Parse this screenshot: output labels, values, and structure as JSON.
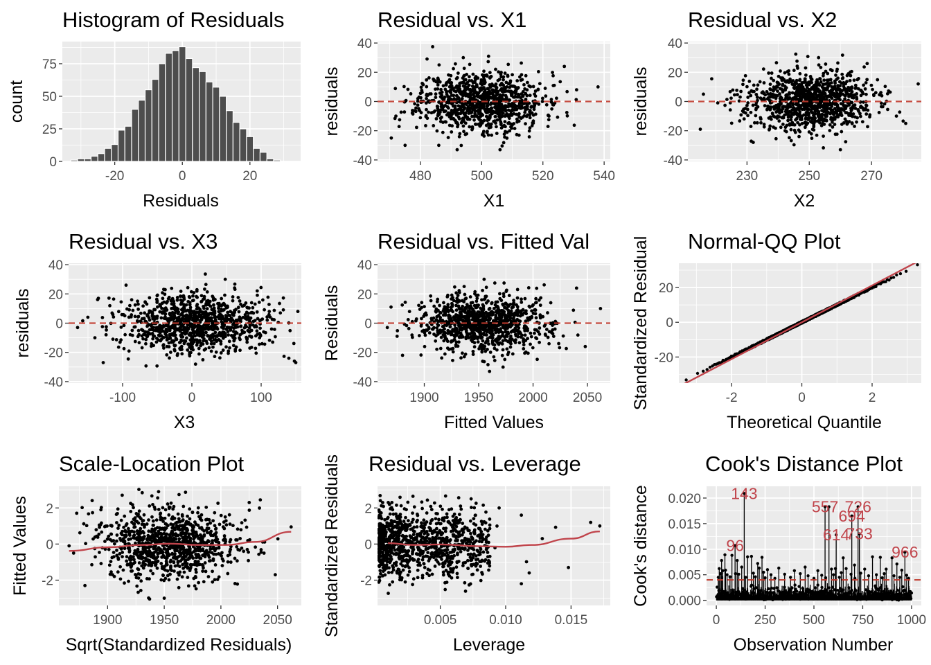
{
  "colors": {
    "panel_bg": "#EBEBEB",
    "grid": "#FFFFFF",
    "points": "#000000",
    "bars": "#4D4D4D",
    "bar_outline": "#FFFFFF",
    "reference": "#C0444B"
  },
  "chart_data": [
    {
      "id": "hist",
      "type": "bar",
      "title": "Histogram of Residuals",
      "xlabel": "Residuals",
      "ylabel": "count",
      "xlim": [
        -35.5,
        35
      ],
      "ylim": [
        0,
        92
      ],
      "xticks": [
        -20,
        0,
        20
      ],
      "xtick_labels": [
        "-20",
        "0",
        "20"
      ],
      "yticks": [
        0,
        25,
        50,
        75
      ],
      "ytick_labels": [
        "0",
        "25",
        "50",
        "75"
      ],
      "bin_width": 2,
      "bins": [
        -32,
        -30,
        -28,
        -26,
        -24,
        -22,
        -20,
        -18,
        -16,
        -14,
        -12,
        -10,
        -8,
        -6,
        -4,
        -2,
        0,
        2,
        4,
        6,
        8,
        10,
        12,
        14,
        16,
        18,
        20,
        22,
        24,
        26,
        28,
        30
      ],
      "counts": [
        1,
        2,
        2,
        4,
        6,
        10,
        13,
        24,
        27,
        40,
        47,
        55,
        63,
        75,
        83,
        85,
        88,
        79,
        72,
        69,
        61,
        57,
        50,
        39,
        30,
        25,
        19,
        10,
        7,
        2,
        1,
        0
      ]
    },
    {
      "id": "x1",
      "type": "scatter",
      "title": "Residual vs. X1",
      "xlabel": "X1",
      "ylabel": "residuals",
      "xlim": [
        466,
        542
      ],
      "ylim": [
        -41,
        41
      ],
      "xticks": [
        480,
        500,
        520,
        540
      ],
      "xtick_labels": [
        "480",
        "500",
        "520",
        "540"
      ],
      "yticks": [
        -40,
        -20,
        0,
        20,
        40
      ],
      "ytick_labels": [
        "-40",
        "-20",
        "0",
        "20",
        "40"
      ],
      "reference_y": 0,
      "cloud": {
        "n": 1000,
        "x_mean": 500,
        "x_sd": 10,
        "y_sd": 10,
        "seed": 11
      },
      "points": [
        [
          470.5,
          -25
        ],
        [
          472,
          -10
        ],
        [
          475,
          -30
        ],
        [
          527,
          24
        ],
        [
          531,
          8
        ],
        [
          538,
          10
        ],
        [
          494,
          30
        ],
        [
          486,
          -30
        ],
        [
          506,
          -33
        ],
        [
          492,
          -33
        ]
      ]
    },
    {
      "id": "x2",
      "type": "scatter",
      "title": "Residual vs. X2",
      "xlabel": "X2",
      "ylabel": "residuals",
      "xlim": [
        211,
        286
      ],
      "ylim": [
        -41,
        41
      ],
      "xticks": [
        230,
        250,
        270
      ],
      "xtick_labels": [
        "230",
        "250",
        "270"
      ],
      "yticks": [
        -40,
        -20,
        0,
        20,
        40
      ],
      "ytick_labels": [
        "-40",
        "-20",
        "0",
        "20",
        "40"
      ],
      "reference_y": 0,
      "cloud": {
        "n": 1000,
        "x_mean": 250,
        "x_sd": 10,
        "y_sd": 10,
        "seed": 23
      },
      "points": [
        [
          215,
          -19
        ],
        [
          216,
          5
        ],
        [
          278,
          -10
        ],
        [
          281,
          -15
        ],
        [
          285,
          12
        ],
        [
          253,
          30
        ],
        [
          260,
          -33
        ],
        [
          232,
          -28
        ]
      ]
    },
    {
      "id": "x3",
      "type": "scatter",
      "title": "Residual vs. X3",
      "xlabel": "X3",
      "ylabel": "residuals",
      "xlim": [
        -178,
        158
      ],
      "ylim": [
        -41,
        41
      ],
      "xticks": [
        -100,
        0,
        100
      ],
      "xtick_labels": [
        "-100",
        "0",
        "100"
      ],
      "yticks": [
        -40,
        -20,
        0,
        20,
        40
      ],
      "ytick_labels": [
        "-40",
        "-20",
        "0",
        "20",
        "40"
      ],
      "reference_y": 0,
      "cloud": {
        "n": 1000,
        "x_mean": 5,
        "x_sd": 50,
        "y_sd": 10,
        "seed": 37
      },
      "points": [
        [
          -165,
          -3
        ],
        [
          -140,
          -10
        ],
        [
          -135,
          17
        ],
        [
          -128,
          -27
        ],
        [
          150,
          -27
        ],
        [
          153,
          8
        ],
        [
          148,
          -26
        ],
        [
          140,
          -24
        ],
        [
          -95,
          26
        ]
      ]
    },
    {
      "id": "fitted",
      "type": "scatter",
      "title": "Residual vs. Fitted Val",
      "xlabel": "Fitted Values",
      "ylabel": "Residuals",
      "xlim": [
        1857,
        2071
      ],
      "ylim": [
        -41,
        41
      ],
      "xticks": [
        1900,
        1950,
        2000,
        2050
      ],
      "xtick_labels": [
        "1900",
        "1950",
        "2000",
        "2050"
      ],
      "yticks": [
        -40,
        -20,
        0,
        20,
        40
      ],
      "ytick_labels": [
        "-40",
        "-20",
        "0",
        "20",
        "40"
      ],
      "reference_y": 0,
      "cloud": {
        "n": 1000,
        "x_mean": 1955,
        "x_sd": 30,
        "y_sd": 10,
        "seed": 53
      },
      "points": [
        [
          1866,
          -3
        ],
        [
          1880,
          -22
        ],
        [
          1875,
          -9
        ],
        [
          2048,
          -16
        ],
        [
          2062,
          10
        ],
        [
          2040,
          24
        ],
        [
          1955,
          30
        ],
        [
          1960,
          -33
        ]
      ]
    },
    {
      "id": "qq",
      "type": "scatter",
      "title": "Normal-QQ Plot",
      "xlabel": "Theoretical Quantile",
      "ylabel": "Standardized Residual",
      "xlim": [
        -3.5,
        3.4
      ],
      "ylim": [
        -35,
        34
      ],
      "xticks": [
        -2,
        0,
        2
      ],
      "xtick_labels": [
        "-2",
        "0",
        "2"
      ],
      "yticks": [
        -20,
        0,
        20
      ],
      "ytick_labels": [
        "-20",
        "0",
        "20"
      ],
      "reference_line": {
        "intercept": 0,
        "slope": 10.6
      },
      "qq": {
        "n": 1000,
        "sd": 10,
        "seed": 71
      }
    },
    {
      "id": "scale",
      "type": "scatter",
      "title": "Scale-Location Plot",
      "xlabel": "Sqrt(Standardized Residuals)",
      "ylabel": "Fitted Values",
      "xlim": [
        1857,
        2071
      ],
      "ylim": [
        -3.4,
        3.2
      ],
      "xticks": [
        1900,
        1950,
        2000,
        2050
      ],
      "xtick_labels": [
        "1900",
        "1950",
        "2000",
        "2050"
      ],
      "yticks": [
        -2,
        0,
        2
      ],
      "ytick_labels": [
        "-2",
        "0",
        "2"
      ],
      "smooth": [
        [
          1866,
          -0.38
        ],
        [
          1900,
          -0.18
        ],
        [
          1930,
          -0.05
        ],
        [
          1955,
          0.02
        ],
        [
          1980,
          -0.05
        ],
        [
          2005,
          -0.05
        ],
        [
          2030,
          0.12
        ],
        [
          2062,
          0.68
        ]
      ],
      "cloud": {
        "n": 1000,
        "x_mean": 1955,
        "x_sd": 30,
        "y_sd": 1,
        "seed": 89
      },
      "points": [
        [
          1866,
          -0.1
        ],
        [
          1870,
          -0.5
        ],
        [
          1880,
          -2.3
        ],
        [
          2025,
          2.3
        ],
        [
          2062,
          0.95
        ],
        [
          2048,
          -1.7
        ],
        [
          1945,
          2.9
        ],
        [
          1950,
          -3.0
        ]
      ]
    },
    {
      "id": "leverage",
      "type": "scatter",
      "title": "Residual vs. Leverage",
      "xlabel": "Leverage",
      "ylabel": "Standardized Residuals",
      "xlim": [
        0.0002,
        0.018
      ],
      "ylim": [
        -3.4,
        3.2
      ],
      "xticks": [
        0.005,
        0.01,
        0.015
      ],
      "xtick_labels": [
        "0.005",
        "0.010",
        "0.015"
      ],
      "yticks": [
        -2,
        0,
        2
      ],
      "ytick_labels": [
        "-2",
        "0",
        "2"
      ],
      "smooth": [
        [
          0.001,
          0.05
        ],
        [
          0.003,
          -0.05
        ],
        [
          0.005,
          -0.02
        ],
        [
          0.008,
          -0.12
        ],
        [
          0.01,
          -0.15
        ],
        [
          0.012,
          -0.05
        ],
        [
          0.015,
          0.3
        ],
        [
          0.0172,
          0.7
        ]
      ],
      "lev": {
        "n": 1000,
        "seed": 97
      },
      "points": [
        [
          0.0172,
          1.0
        ],
        [
          0.0165,
          1.2
        ],
        [
          0.0148,
          -1.3
        ],
        [
          0.0128,
          0.3
        ],
        [
          0.0112,
          1.6
        ],
        [
          0.0118,
          -1.6
        ],
        [
          0.0095,
          2.0
        ],
        [
          0.0112,
          -2.2
        ]
      ]
    },
    {
      "id": "cook",
      "type": "bar",
      "title": "Cook's Distance Plot",
      "xlabel": "Observation Number",
      "ylabel": "Cook's distance",
      "xlim": [
        -50,
        1050
      ],
      "ylim": [
        -0.001,
        0.0223
      ],
      "xticks": [
        0,
        250,
        500,
        750,
        1000
      ],
      "xtick_labels": [
        "0",
        "250",
        "500",
        "750",
        "1000"
      ],
      "yticks": [
        0,
        0.005,
        0.01,
        0.015,
        0.02
      ],
      "ytick_labels": [
        "0.000",
        "0.005",
        "0.010",
        "0.015",
        "0.020"
      ],
      "threshold": 0.004,
      "cook": {
        "n": 1000,
        "seed": 131
      },
      "large": [
        [
          143,
          0.0209
        ],
        [
          557,
          0.0183
        ],
        [
          577,
          0.0183
        ],
        [
          726,
          0.0183
        ],
        [
          694,
          0.0165
        ],
        [
          614,
          0.0128
        ],
        [
          733,
          0.013
        ],
        [
          96,
          0.0107
        ],
        [
          966,
          0.0094
        ],
        [
          44,
          0.0089
        ],
        [
          80,
          0.0088
        ],
        [
          160,
          0.0085
        ],
        [
          180,
          0.0086
        ],
        [
          234,
          0.0084
        ],
        [
          650,
          0.0083
        ],
        [
          800,
          0.0085
        ],
        [
          840,
          0.0084
        ],
        [
          900,
          0.0083
        ],
        [
          27,
          0.0078
        ],
        [
          107,
          0.0078
        ],
        [
          212,
          0.0072
        ],
        [
          320,
          0.0063
        ],
        [
          455,
          0.0065
        ],
        [
          610,
          0.0062
        ],
        [
          708,
          0.0069
        ],
        [
          925,
          0.0071
        ],
        [
          15,
          0.0062
        ],
        [
          33,
          0.0058
        ],
        [
          47,
          0.0059
        ],
        [
          130,
          0.0065
        ],
        [
          220,
          0.0063
        ],
        [
          262,
          0.006
        ],
        [
          400,
          0.0058
        ],
        [
          520,
          0.0058
        ],
        [
          590,
          0.0061
        ],
        [
          665,
          0.0062
        ],
        [
          760,
          0.0061
        ],
        [
          870,
          0.0061
        ],
        [
          950,
          0.0059
        ],
        [
          22,
          0.0052
        ],
        [
          55,
          0.005
        ],
        [
          98,
          0.0052
        ],
        [
          115,
          0.0051
        ],
        [
          190,
          0.0053
        ],
        [
          242,
          0.0055
        ],
        [
          280,
          0.005
        ],
        [
          350,
          0.0051
        ],
        [
          430,
          0.0052
        ],
        [
          470,
          0.0048
        ],
        [
          540,
          0.0049
        ],
        [
          600,
          0.005
        ],
        [
          640,
          0.0054
        ],
        [
          690,
          0.0051
        ],
        [
          740,
          0.0053
        ],
        [
          780,
          0.0048
        ],
        [
          820,
          0.005
        ],
        [
          860,
          0.0052
        ],
        [
          910,
          0.0048
        ],
        [
          975,
          0.0049
        ],
        [
          10,
          0.0045
        ],
        [
          28,
          0.0044
        ],
        [
          70,
          0.0046
        ],
        [
          150,
          0.0045
        ],
        [
          200,
          0.0046
        ],
        [
          250,
          0.0044
        ],
        [
          300,
          0.0043
        ],
        [
          380,
          0.0045
        ],
        [
          500,
          0.0043
        ],
        [
          560,
          0.0044
        ],
        [
          630,
          0.0045
        ],
        [
          710,
          0.0043
        ],
        [
          850,
          0.0044
        ],
        [
          940,
          0.0045
        ],
        [
          985,
          0.0043
        ]
      ],
      "labels": [
        {
          "text": "143",
          "x": 143,
          "y": 0.0209
        },
        {
          "text": "557",
          "x": 557,
          "y": 0.0183
        },
        {
          "text": "726",
          "x": 726,
          "y": 0.0183
        },
        {
          "text": "694",
          "x": 694,
          "y": 0.0165
        },
        {
          "text": "614",
          "x": 614,
          "y": 0.0128
        },
        {
          "text": "733",
          "x": 733,
          "y": 0.013
        },
        {
          "text": "96",
          "x": 96,
          "y": 0.0107
        },
        {
          "text": "966",
          "x": 966,
          "y": 0.0094
        }
      ]
    }
  ]
}
